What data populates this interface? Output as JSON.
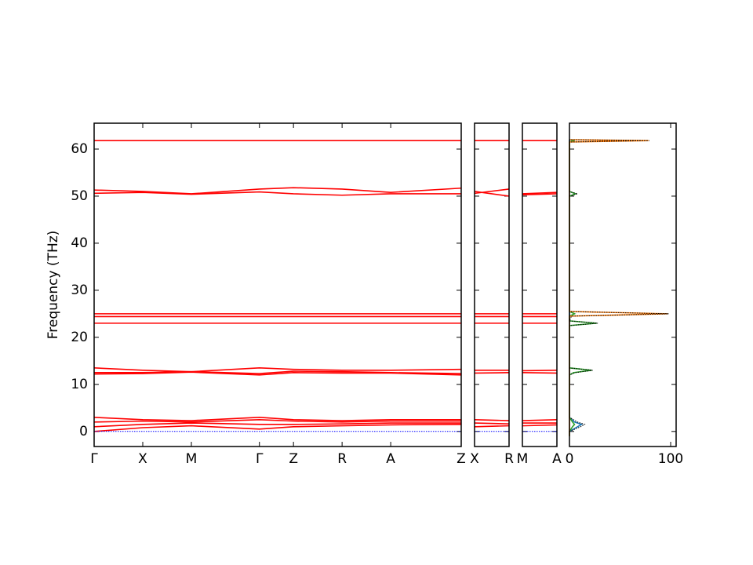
{
  "chart_data": [
    {
      "type": "bands",
      "ylabel": "Frequency (THz)",
      "ylim": [
        -3.2,
        65.5
      ],
      "yticks": [
        0,
        10,
        20,
        30,
        40,
        50,
        60
      ],
      "xlim": [
        0,
        7.55
      ],
      "xticks": [
        {
          "value": 0,
          "label": "Γ"
        },
        {
          "value": 1,
          "label": "X"
        },
        {
          "value": 2,
          "label": "M"
        },
        {
          "value": 3.4,
          "label": "Γ"
        },
        {
          "value": 4.1,
          "label": "Z"
        },
        {
          "value": 5.1,
          "label": "R"
        },
        {
          "value": 6.1,
          "label": "A"
        },
        {
          "value": 7.55,
          "label": "Z"
        }
      ],
      "x": [
        0,
        1,
        2,
        3.4,
        4.1,
        5.1,
        6.1,
        7.55
      ],
      "series": [
        {
          "color": "#ff0000",
          "values": [
            61.8,
            61.8,
            61.8,
            61.8,
            61.8,
            61.8,
            61.8,
            61.8
          ]
        },
        {
          "color": "#ff0000",
          "values": [
            51.3,
            51.0,
            50.5,
            51.5,
            51.8,
            51.5,
            50.8,
            51.7
          ]
        },
        {
          "color": "#ff0000",
          "values": [
            50.6,
            50.8,
            50.4,
            50.9,
            50.5,
            50.2,
            50.5,
            50.5
          ]
        },
        {
          "color": "#ff0000",
          "values": [
            25.0,
            25.0,
            25.0,
            25.0,
            25.0,
            25.0,
            25.0,
            25.0
          ]
        },
        {
          "color": "#ff0000",
          "values": [
            24.4,
            24.4,
            24.4,
            24.4,
            24.4,
            24.4,
            24.4,
            24.4
          ]
        },
        {
          "color": "#ff0000",
          "values": [
            23.0,
            23.0,
            23.0,
            23.0,
            23.0,
            23.0,
            23.0,
            23.0
          ]
        },
        {
          "color": "#ff0000",
          "values": [
            13.5,
            13.0,
            12.7,
            13.5,
            13.2,
            13.0,
            13.0,
            13.2
          ]
        },
        {
          "color": "#ff0000",
          "values": [
            12.5,
            12.5,
            12.7,
            12.3,
            12.8,
            12.7,
            12.5,
            12.3
          ]
        },
        {
          "color": "#ff0000",
          "values": [
            12.2,
            12.3,
            12.6,
            12.0,
            12.5,
            12.4,
            12.4,
            12.0
          ]
        },
        {
          "color": "#ff0000",
          "values": [
            3.0,
            2.5,
            2.3,
            3.0,
            2.5,
            2.3,
            2.5,
            2.5
          ]
        },
        {
          "color": "#ff0000",
          "values": [
            2.0,
            2.2,
            2.0,
            2.5,
            2.2,
            2.0,
            2.2,
            2.2
          ]
        },
        {
          "color": "#ff0000",
          "values": [
            1.0,
            1.5,
            1.8,
            1.5,
            1.5,
            1.6,
            1.8,
            1.8
          ]
        },
        {
          "color": "#ff0000",
          "values": [
            0,
            0.8,
            1.2,
            0.5,
            1.0,
            1.2,
            1.4,
            1.5
          ]
        },
        {
          "color": "#0000ff",
          "linestyle": "dotted",
          "values": [
            0,
            0,
            0,
            0,
            0,
            0,
            0,
            0
          ]
        }
      ]
    },
    {
      "type": "bands",
      "ylim": [
        -3.2,
        65.5
      ],
      "xlim": [
        0,
        1
      ],
      "xticks": [
        {
          "value": 0,
          "label": "X"
        },
        {
          "value": 1,
          "label": "R"
        }
      ],
      "x": [
        0,
        1
      ],
      "series": [
        {
          "color": "#ff0000",
          "values": [
            61.8,
            61.8
          ]
        },
        {
          "color": "#ff0000",
          "values": [
            50.6,
            51.5
          ]
        },
        {
          "color": "#ff0000",
          "values": [
            51.0,
            50.0
          ]
        },
        {
          "color": "#ff0000",
          "values": [
            25.0,
            25.0
          ]
        },
        {
          "color": "#ff0000",
          "values": [
            24.4,
            24.4
          ]
        },
        {
          "color": "#ff0000",
          "values": [
            23.0,
            23.0
          ]
        },
        {
          "color": "#ff0000",
          "values": [
            13.0,
            13.0
          ]
        },
        {
          "color": "#ff0000",
          "values": [
            12.4,
            12.5
          ]
        },
        {
          "color": "#ff0000",
          "values": [
            2.5,
            2.3
          ]
        },
        {
          "color": "#ff0000",
          "values": [
            1.8,
            1.6
          ]
        },
        {
          "color": "#ff0000",
          "values": [
            1.0,
            1.2
          ]
        },
        {
          "color": "#0000ff",
          "linestyle": "dotted",
          "values": [
            0,
            0
          ]
        }
      ]
    },
    {
      "type": "bands",
      "ylim": [
        -3.2,
        65.5
      ],
      "xlim": [
        0,
        1
      ],
      "xticks": [
        {
          "value": 0,
          "label": "M"
        },
        {
          "value": 1,
          "label": "A"
        }
      ],
      "x": [
        0,
        1
      ],
      "series": [
        {
          "color": "#ff0000",
          "values": [
            61.8,
            61.8
          ]
        },
        {
          "color": "#ff0000",
          "values": [
            50.5,
            50.8
          ]
        },
        {
          "color": "#ff0000",
          "values": [
            50.3,
            50.5
          ]
        },
        {
          "color": "#ff0000",
          "values": [
            25.0,
            25.0
          ]
        },
        {
          "color": "#ff0000",
          "values": [
            24.4,
            24.4
          ]
        },
        {
          "color": "#ff0000",
          "values": [
            23.0,
            23.0
          ]
        },
        {
          "color": "#ff0000",
          "values": [
            12.9,
            13.0
          ]
        },
        {
          "color": "#ff0000",
          "values": [
            12.5,
            12.4
          ]
        },
        {
          "color": "#ff0000",
          "values": [
            2.3,
            2.5
          ]
        },
        {
          "color": "#ff0000",
          "values": [
            1.8,
            1.8
          ]
        },
        {
          "color": "#ff0000",
          "values": [
            1.2,
            1.4
          ]
        },
        {
          "color": "#0000ff",
          "linestyle": "dotted",
          "values": [
            0,
            0
          ]
        }
      ]
    },
    {
      "type": "dos",
      "ylim": [
        -3.2,
        65.5
      ],
      "xlim": [
        0,
        105.4
      ],
      "xticks": [
        0,
        100
      ],
      "y": [
        -1,
        0,
        1,
        1.5,
        2,
        3,
        12,
        12.5,
        13,
        13.5,
        22.5,
        23,
        23.5,
        24.5,
        25,
        25.5,
        50,
        50.5,
        51,
        61.5,
        61.8,
        62
      ],
      "series": [
        {
          "color": "#1f77b4",
          "values": [
            0,
            0,
            8,
            12,
            5,
            0,
            0,
            0,
            0,
            0,
            0,
            0,
            0,
            0,
            0,
            0,
            0,
            0,
            0,
            0,
            0,
            0
          ]
        },
        {
          "color": "#2ca02c",
          "values": [
            0,
            0,
            3,
            5,
            3,
            0,
            0,
            4,
            22,
            0,
            0,
            27,
            0,
            0,
            5,
            0,
            0,
            6,
            0,
            0,
            5,
            0
          ]
        },
        {
          "color": "#ff7f0e",
          "values": [
            0,
            0,
            0,
            0,
            0,
            0,
            0,
            0,
            0,
            0,
            0,
            0,
            0,
            0,
            97,
            0,
            0,
            0,
            0,
            0,
            78,
            0
          ]
        },
        {
          "color": "#000000",
          "linestyle": "dotted",
          "values": [
            0,
            0,
            11,
            15,
            8,
            0,
            0,
            6,
            23,
            0,
            0,
            28,
            0,
            2,
            98,
            0,
            0,
            8,
            0,
            0,
            79,
            0
          ]
        }
      ]
    }
  ]
}
